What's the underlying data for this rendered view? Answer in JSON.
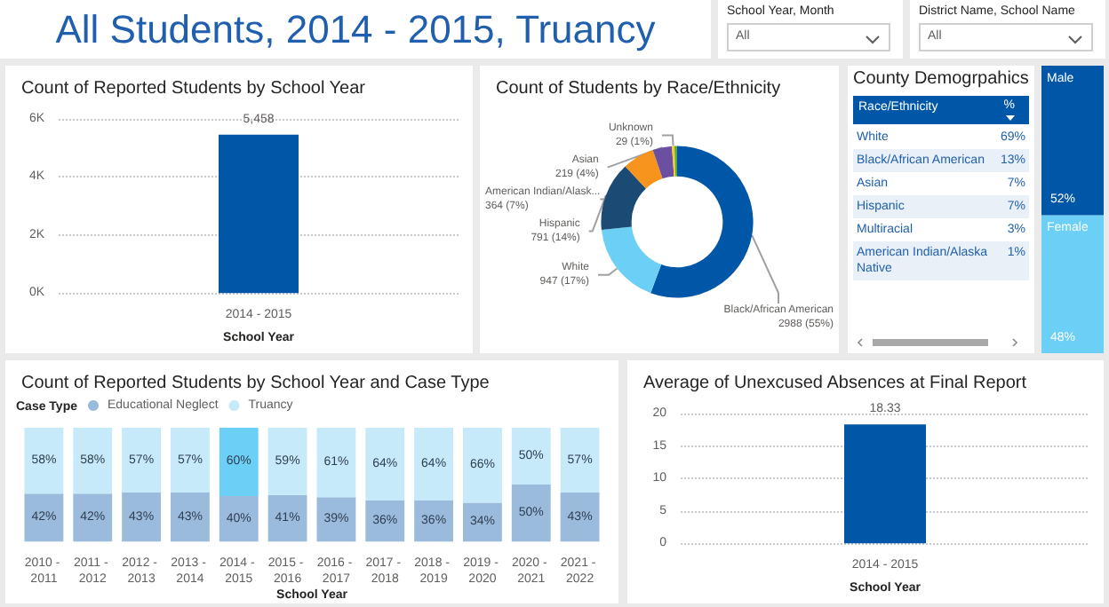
{
  "chart_data": [
    {
      "type": "other",
      "title": "All Students, 2014 - 2015, Truancy"
    },
    {
      "type": "other",
      "title": "School Year, Month",
      "annotations": [
        "All"
      ]
    },
    {
      "type": "other",
      "title": "District Name, School Name",
      "annotations": [
        "All"
      ]
    },
    {
      "type": "bar",
      "title": "Count of Reported Students by School Year",
      "xlabel": "School Year",
      "categories": [
        "2014 - 2015"
      ],
      "values": [
        5458
      ],
      "color": "#0057a8",
      "value_labels": [
        "5,458"
      ],
      "ylim": [
        0,
        6000
      ],
      "yticks": [
        {
          "value": 0,
          "label": "0K"
        },
        {
          "value": 2000,
          "label": "2K"
        },
        {
          "value": 4000,
          "label": "4K"
        },
        {
          "value": 6000,
          "label": "6K"
        }
      ],
      "grid": "y"
    },
    {
      "type": "donut",
      "title": "Count of Students by Race/Ethnicity",
      "categories": [
        "Black/African American",
        "White",
        "Hispanic",
        "American Indian/Alask...",
        "Asian",
        "Unknown",
        null
      ],
      "values": [
        2988,
        947,
        791,
        364,
        219,
        29,
        30
      ],
      "colors": [
        "#0057a8",
        "#6ccff6",
        "#1b4a75",
        "#f7941d",
        "#6b4fa0",
        "#f5cf1a",
        "#5aa84a"
      ],
      "value_labels": [
        "2988 (55%)",
        "947 (17%)",
        "791 (14%)",
        "364 (7%)",
        "219 (4%)",
        "29 (1%)",
        null
      ]
    },
    {
      "type": "other",
      "title": "County Demogrpahics",
      "xlabel": "Race/Ethnicity",
      "ylabel": "%",
      "categories": [
        "White",
        "Black/African American",
        "Asian",
        "Hispanic",
        "Multiracial",
        "American Indian/Alaska Native"
      ],
      "value_labels": [
        "69%",
        "13%",
        "7%",
        "7%",
        "3%",
        "1%"
      ]
    },
    {
      "type": "bar",
      "stacked": true,
      "tick_labels": false,
      "categories": [
        null
      ],
      "series": [
        {
          "name": "Female",
          "color": "#6ccff6",
          "values": [
            48
          ],
          "value_labels": [
            "48%"
          ]
        },
        {
          "name": "Male",
          "color": "#0057a8",
          "values": [
            52
          ],
          "value_labels": [
            "52%"
          ]
        }
      ]
    },
    {
      "type": "bar",
      "stacked": true,
      "title": "Count of Reported Students by School Year and Case Type",
      "xlabel": "School Year",
      "legend": "top left",
      "legend_title": "Case Type",
      "tick_labels": "x",
      "ylim": [
        0,
        100
      ],
      "categories": [
        "2010 - 2011",
        "2011 - 2012",
        "2012 - 2013",
        "2013 - 2014",
        "2014 - 2015",
        "2015 - 2016",
        "2016 - 2017",
        "2017 - 2018",
        "2018 - 2019",
        "2019 - 2020",
        "2020 - 2021",
        "2021 - 2022"
      ],
      "series": [
        {
          "name": "Educational Neglect",
          "color": "#9bbbdc",
          "values": [
            42,
            42,
            43,
            43,
            40,
            41,
            39,
            36,
            36,
            34,
            50,
            43
          ],
          "value_labels": [
            "42%",
            "42%",
            "43%",
            "43%",
            "40%",
            "41%",
            "39%",
            "36%",
            "36%",
            "34%",
            "50%",
            "43%"
          ]
        },
        {
          "name": "Truancy",
          "color": "#c6eaf9",
          "colors": [
            "#c6eaf9",
            "#c6eaf9",
            "#c6eaf9",
            "#c6eaf9",
            "#6ccff6",
            "#c6eaf9",
            "#c6eaf9",
            "#c6eaf9",
            "#c6eaf9",
            "#c6eaf9",
            "#c6eaf9",
            "#c6eaf9"
          ],
          "values": [
            58,
            58,
            57,
            57,
            60,
            59,
            61,
            64,
            64,
            66,
            50,
            57
          ],
          "value_labels": [
            "58%",
            "58%",
            "57%",
            "57%",
            "60%",
            "59%",
            "61%",
            "64%",
            "64%",
            "66%",
            "50%",
            "57%"
          ]
        }
      ]
    },
    {
      "type": "bar",
      "title": "Average of Unexcused Absences at Final Report",
      "xlabel": "School Year",
      "categories": [
        "2014 - 2015"
      ],
      "values": [
        18.33
      ],
      "color": "#0057a8",
      "data_labels": true,
      "ylim": [
        0,
        20
      ],
      "yticks": [
        0,
        5,
        10,
        15,
        20
      ],
      "grid": "y"
    }
  ]
}
